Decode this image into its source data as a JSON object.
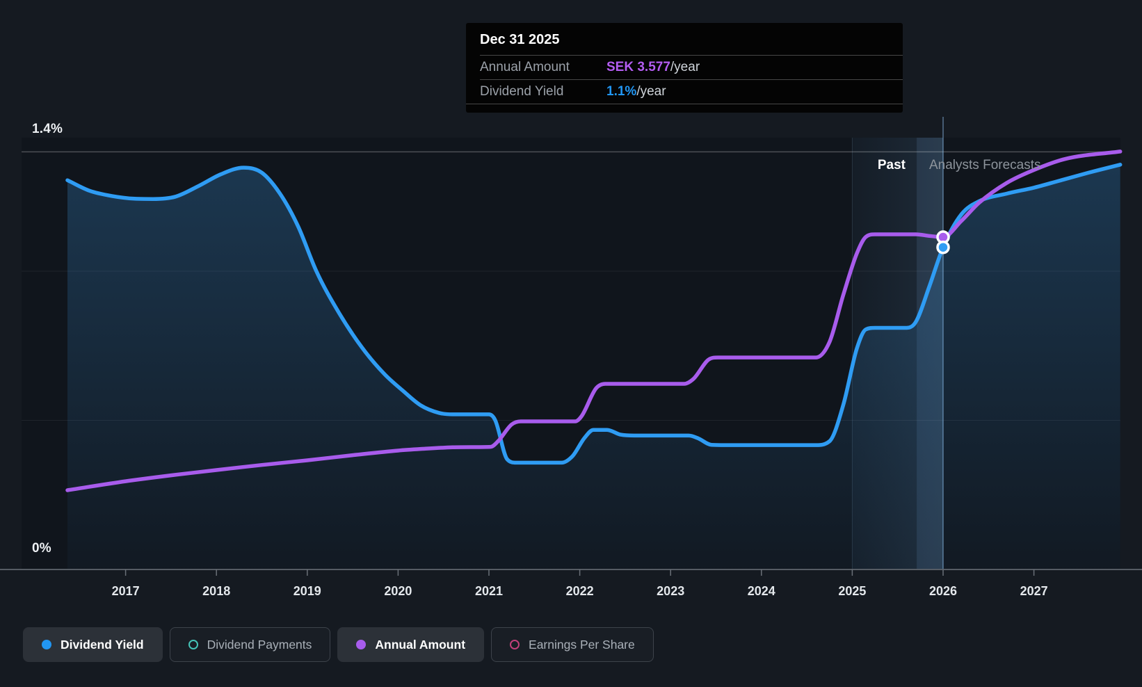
{
  "labels": {
    "y_max": "1.4%",
    "y_min": "0%",
    "past": "Past",
    "forecast": "Analysts Forecasts"
  },
  "tooltip": {
    "date": "Dec 31 2025",
    "rows": [
      {
        "label": "Annual Amount",
        "value": "SEK 3.577",
        "suffix": "/year",
        "color": "#b45df2"
      },
      {
        "label": "Dividend Yield",
        "value": "1.1%",
        "suffix": "/year",
        "color": "#2196f3"
      }
    ]
  },
  "legend": [
    {
      "label": "Dividend Yield",
      "style": "filled",
      "color": "#2196f3"
    },
    {
      "label": "Dividend Payments",
      "style": "outline",
      "color": "#45c4b8"
    },
    {
      "label": "Annual Amount",
      "style": "filled",
      "color": "#a85cec"
    },
    {
      "label": "Earnings Per Share",
      "style": "outline",
      "color": "#c2407a"
    }
  ],
  "colors": {
    "page_bg": "#151a21",
    "plot_bg": "#10151c",
    "yield_line": "#2f9cf3",
    "amount_line": "#a85cec",
    "axis": "#565c64",
    "tick_label": "#e4e8ec"
  },
  "chart_data": {
    "type": "line",
    "title": "Dividend history and forecast",
    "x_range": [
      2016.36,
      2027.95
    ],
    "x_ticks": [
      2017,
      2018,
      2019,
      2020,
      2021,
      2022,
      2023,
      2024,
      2025,
      2026,
      2027
    ],
    "y_axis_left": {
      "unit": "%",
      "range": [
        0,
        1.4
      ],
      "tick_labels_shown": [
        "0%",
        "1.4%"
      ],
      "gridlines": [
        0.5,
        1.0,
        1.4
      ],
      "grid_on": true
    },
    "regions": {
      "past_until": 2025.71,
      "hover_band": [
        2025.0,
        2026.0
      ],
      "hover_line_x": 2026.0,
      "past_label": "Past",
      "forecast_label": "Analysts Forecasts"
    },
    "legend_position": "bottom-left",
    "series": [
      {
        "name": "Dividend Yield",
        "unit": "%",
        "color": "#2f9cf3",
        "area_fill": true,
        "points": [
          [
            2016.36,
            1.305
          ],
          [
            2016.6,
            1.27
          ],
          [
            2016.85,
            1.252
          ],
          [
            2017.1,
            1.243
          ],
          [
            2017.3,
            1.242
          ],
          [
            2017.55,
            1.25
          ],
          [
            2017.8,
            1.285
          ],
          [
            2018.05,
            1.325
          ],
          [
            2018.3,
            1.347
          ],
          [
            2018.5,
            1.33
          ],
          [
            2018.7,
            1.26
          ],
          [
            2018.9,
            1.15
          ],
          [
            2019.1,
            1.0
          ],
          [
            2019.35,
            0.86
          ],
          [
            2019.6,
            0.745
          ],
          [
            2019.85,
            0.655
          ],
          [
            2020.05,
            0.6
          ],
          [
            2020.25,
            0.55
          ],
          [
            2020.45,
            0.525
          ],
          [
            2020.6,
            0.52
          ],
          [
            2021.0,
            0.52
          ],
          [
            2021.07,
            0.5
          ],
          [
            2021.2,
            0.37
          ],
          [
            2021.3,
            0.358
          ],
          [
            2021.8,
            0.358
          ],
          [
            2021.92,
            0.38
          ],
          [
            2022.05,
            0.44
          ],
          [
            2022.15,
            0.468
          ],
          [
            2022.3,
            0.468
          ],
          [
            2022.45,
            0.452
          ],
          [
            2022.6,
            0.449
          ],
          [
            2023.2,
            0.449
          ],
          [
            2023.3,
            0.44
          ],
          [
            2023.45,
            0.418
          ],
          [
            2023.6,
            0.417
          ],
          [
            2024.6,
            0.417
          ],
          [
            2024.75,
            0.43
          ],
          [
            2024.9,
            0.55
          ],
          [
            2025.05,
            0.74
          ],
          [
            2025.15,
            0.805
          ],
          [
            2025.25,
            0.81
          ],
          [
            2025.6,
            0.81
          ],
          [
            2025.7,
            0.83
          ],
          [
            2025.85,
            0.95
          ],
          [
            2026.0,
            1.08
          ],
          [
            2026.2,
            1.19
          ],
          [
            2026.4,
            1.235
          ],
          [
            2026.7,
            1.26
          ],
          [
            2027.0,
            1.28
          ],
          [
            2027.3,
            1.305
          ],
          [
            2027.6,
            1.33
          ],
          [
            2027.95,
            1.357
          ]
        ]
      },
      {
        "name": "Annual Amount",
        "unit": "SEK",
        "color": "#a85cec",
        "area_fill": false,
        "points": [
          [
            2016.36,
            0.853
          ],
          [
            2017.0,
            0.95
          ],
          [
            2017.5,
            1.013
          ],
          [
            2018.0,
            1.07
          ],
          [
            2018.5,
            1.125
          ],
          [
            2019.0,
            1.175
          ],
          [
            2019.5,
            1.23
          ],
          [
            2020.0,
            1.28
          ],
          [
            2020.3,
            1.3
          ],
          [
            2020.6,
            1.315
          ],
          [
            2021.02,
            1.32
          ],
          [
            2021.1,
            1.38
          ],
          [
            2021.25,
            1.56
          ],
          [
            2021.35,
            1.594
          ],
          [
            2021.95,
            1.594
          ],
          [
            2022.02,
            1.65
          ],
          [
            2022.18,
            1.95
          ],
          [
            2022.28,
            1.998
          ],
          [
            2023.15,
            1.998
          ],
          [
            2023.25,
            2.05
          ],
          [
            2023.42,
            2.26
          ],
          [
            2023.52,
            2.282
          ],
          [
            2024.6,
            2.282
          ],
          [
            2024.75,
            2.45
          ],
          [
            2024.9,
            2.95
          ],
          [
            2025.05,
            3.4
          ],
          [
            2025.15,
            3.58
          ],
          [
            2025.25,
            3.607
          ],
          [
            2025.7,
            3.607
          ],
          [
            2025.85,
            3.59
          ],
          [
            2026.0,
            3.577
          ],
          [
            2026.2,
            3.75
          ],
          [
            2026.4,
            3.95
          ],
          [
            2026.7,
            4.16
          ],
          [
            2027.0,
            4.3
          ],
          [
            2027.35,
            4.42
          ],
          [
            2027.95,
            4.498
          ]
        ]
      }
    ],
    "markers": [
      {
        "series": "Annual Amount",
        "x": 2026.0,
        "value": 3.577,
        "display": "SEK 3.577/year"
      },
      {
        "series": "Dividend Yield",
        "x": 2026.0,
        "value": 1.08,
        "display": "1.1%/year"
      }
    ]
  }
}
